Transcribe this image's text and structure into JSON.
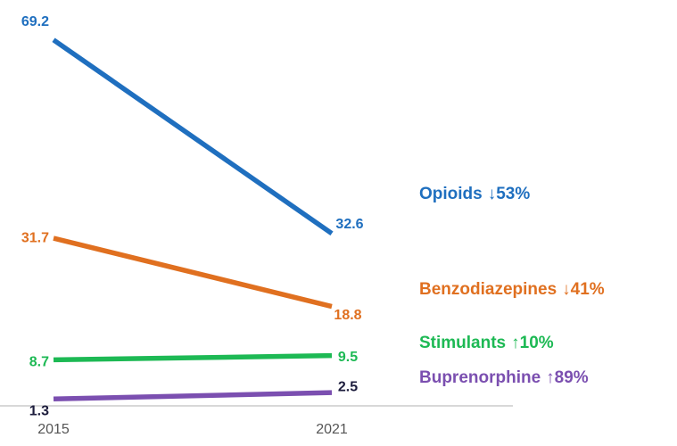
{
  "chart_data": {
    "type": "line",
    "categories": [
      "2015",
      "2021"
    ],
    "ylim": [
      0,
      70
    ],
    "series": [
      {
        "name": "Opioids",
        "change": "↓53%",
        "color": "#1f6fbf",
        "label_color": "#1f6fbf",
        "values": [
          69.2,
          32.6
        ]
      },
      {
        "name": "Benzodiazepines",
        "change": "↓41%",
        "color": "#e07020",
        "label_color": "#e07020",
        "values": [
          31.7,
          18.8
        ]
      },
      {
        "name": "Stimulants",
        "change": "↑10%",
        "color": "#1db954",
        "label_color": "#1db954",
        "values": [
          8.7,
          9.5
        ]
      },
      {
        "name": "Buprenorphine",
        "change": "↑89%",
        "color": "#7b4fb0",
        "label_color": "#1c1c3c",
        "values": [
          1.3,
          2.5
        ]
      }
    ]
  }
}
